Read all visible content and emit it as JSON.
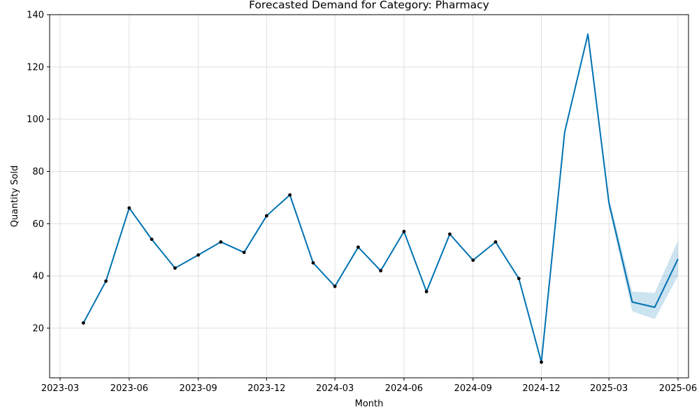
{
  "chart_data": {
    "type": "line",
    "title": "Forecasted Demand for Category: Pharmacy",
    "xlabel": "Month",
    "ylabel": "Quantity Sold",
    "xlim": [
      "2023-02-15",
      "2025-06-15"
    ],
    "ylim": [
      1,
      140
    ],
    "x_ticks": [
      "2023-03-01",
      "2023-06-01",
      "2023-09-01",
      "2023-12-01",
      "2024-03-01",
      "2024-06-01",
      "2024-09-01",
      "2024-12-01",
      "2025-03-01",
      "2025-06-01"
    ],
    "x_tick_labels": [
      "2023-03",
      "2023-06",
      "2023-09",
      "2023-12",
      "2024-03",
      "2024-06",
      "2024-09",
      "2024-12",
      "2025-03",
      "2025-06"
    ],
    "y_ticks": [
      20,
      40,
      60,
      80,
      100,
      120,
      140
    ],
    "y_tick_labels": [
      "20",
      "40",
      "60",
      "80",
      "100",
      "120",
      "140"
    ],
    "grid": true,
    "colors": {
      "forecast_line": "#0072b2",
      "interval_fill": "#0072b2",
      "observed_point": "#000000"
    },
    "observed": {
      "x": [
        "2023-04-01",
        "2023-05-01",
        "2023-06-01",
        "2023-07-01",
        "2023-08-01",
        "2023-09-01",
        "2023-10-01",
        "2023-11-01",
        "2023-12-01",
        "2024-01-01",
        "2024-02-01",
        "2024-03-01",
        "2024-04-01",
        "2024-05-01",
        "2024-06-01",
        "2024-07-01",
        "2024-08-01",
        "2024-09-01",
        "2024-10-01",
        "2024-11-01",
        "2024-12-01"
      ],
      "y": [
        22,
        38,
        66,
        54,
        43,
        48,
        53,
        49,
        63,
        71,
        45,
        36,
        51,
        42,
        57,
        34,
        56,
        46,
        53,
        39,
        7
      ]
    },
    "forecast": {
      "x": [
        "2023-04-01",
        "2023-05-01",
        "2023-06-01",
        "2023-07-01",
        "2023-08-01",
        "2023-09-01",
        "2023-10-01",
        "2023-11-01",
        "2023-12-01",
        "2024-01-01",
        "2024-02-01",
        "2024-03-01",
        "2024-04-01",
        "2024-05-01",
        "2024-06-01",
        "2024-07-01",
        "2024-08-01",
        "2024-09-01",
        "2024-10-01",
        "2024-11-01",
        "2024-12-01",
        "2025-01-01",
        "2025-02-01",
        "2025-03-01",
        "2025-04-01",
        "2025-05-01",
        "2025-06-01"
      ],
      "y": [
        22,
        38,
        66,
        54,
        43,
        48,
        53,
        49,
        63,
        71,
        45,
        36,
        51,
        42,
        57,
        34,
        56,
        46,
        53,
        39,
        7,
        95,
        132.5,
        68,
        30,
        28,
        46.5
      ],
      "lower": [
        21.8,
        37.8,
        65.8,
        53.8,
        42.8,
        47.8,
        52.8,
        48.8,
        62.8,
        70.8,
        44.8,
        35.8,
        50.8,
        41.8,
        56.8,
        33.8,
        55.8,
        45.8,
        52.8,
        38.8,
        6.8,
        94.5,
        131.5,
        66,
        26.5,
        23.5,
        40
      ],
      "upper": [
        22.2,
        38.2,
        66.2,
        54.2,
        43.2,
        48.2,
        53.2,
        49.2,
        63.2,
        71.2,
        45.2,
        36.2,
        51.2,
        42.2,
        57.2,
        34.2,
        56.2,
        46.2,
        53.2,
        39.2,
        7.2,
        95.5,
        134,
        70,
        34,
        33.5,
        53.5
      ]
    }
  }
}
